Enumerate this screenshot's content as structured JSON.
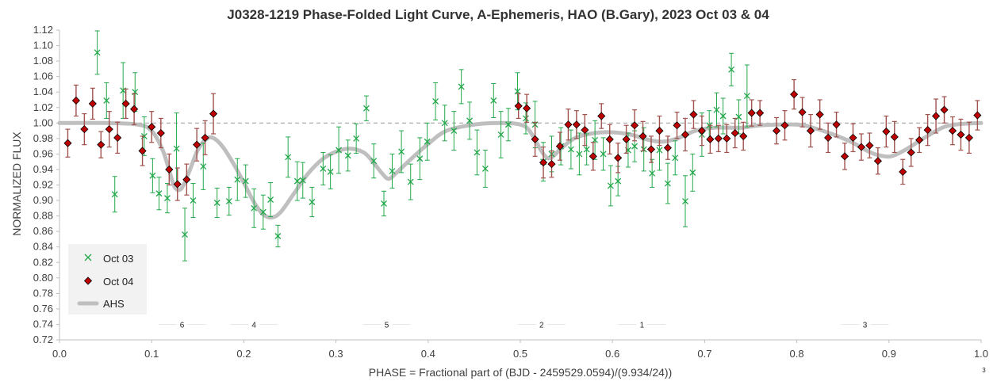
{
  "chart_data": {
    "type": "scatter",
    "title": "J0328-1219 Phase-Folded Light Curve, A-Ephemeris, HAO (B.Gary), 2023 Oct 03 & 04",
    "xlabel": "PHASE = Fractional part of (BJD - 2459529.0594)/(9.934/24))",
    "ylabel": "NORMALIZED FLUX",
    "xlim": [
      0,
      1
    ],
    "ylim": [
      0.72,
      1.12
    ],
    "x_ticks": [
      "0.0",
      "0.1",
      "0.2",
      "0.3",
      "0.4",
      "0.5",
      "0.6",
      "0.7",
      "0.8",
      "0.9",
      "1.0"
    ],
    "y_ticks": [
      "0.72",
      "0.74",
      "0.76",
      "0.78",
      "0.80",
      "0.82",
      "0.84",
      "0.86",
      "0.88",
      "0.90",
      "0.92",
      "0.94",
      "0.96",
      "0.98",
      "1.00",
      "1.02",
      "1.04",
      "1.06",
      "1.08",
      "1.10",
      "1.12"
    ],
    "grid": false,
    "reference_line": 1.0,
    "legend_position": "bottom-left",
    "segment_labels": [
      {
        "label": "6",
        "x": 0.133
      },
      {
        "label": "4",
        "x": 0.211
      },
      {
        "label": "5",
        "x": 0.355
      },
      {
        "label": "2",
        "x": 0.523
      },
      {
        "label": "1",
        "x": 0.632
      },
      {
        "label": "3",
        "x": 0.874
      },
      {
        "label": "3",
        "x": 1.003
      }
    ],
    "series": [
      {
        "name": "Oct 03",
        "marker": "x",
        "color": "#22A84A",
        "points": [
          [
            0.041,
            1.091,
            0.028
          ],
          [
            0.051,
            1.029,
            0.023
          ],
          [
            0.06,
            0.908,
            0.023
          ],
          [
            0.069,
            1.042,
            0.036
          ],
          [
            0.082,
            1.04,
            0.025
          ],
          [
            0.092,
            0.983,
            0.025
          ],
          [
            0.101,
            0.932,
            0.022
          ],
          [
            0.108,
            0.909,
            0.021
          ],
          [
            0.117,
            0.903,
            0.019
          ],
          [
            0.127,
            0.967,
            0.046
          ],
          [
            0.136,
            0.856,
            0.034
          ],
          [
            0.145,
            0.9,
            0.022
          ],
          [
            0.156,
            0.944,
            0.03
          ],
          [
            0.171,
            0.897,
            0.019
          ],
          [
            0.184,
            0.899,
            0.018
          ],
          [
            0.193,
            0.927,
            0.027
          ],
          [
            0.202,
            0.925,
            0.021
          ],
          [
            0.211,
            0.89,
            0.025
          ],
          [
            0.221,
            0.885,
            0.022
          ],
          [
            0.229,
            0.901,
            0.022
          ],
          [
            0.237,
            0.854,
            0.014
          ],
          [
            0.248,
            0.956,
            0.026
          ],
          [
            0.258,
            0.925,
            0.025
          ],
          [
            0.264,
            0.926,
            0.023
          ],
          [
            0.274,
            0.898,
            0.019
          ],
          [
            0.286,
            0.941,
            0.021
          ],
          [
            0.294,
            0.937,
            0.022
          ],
          [
            0.303,
            0.965,
            0.03
          ],
          [
            0.313,
            0.958,
            0.02
          ],
          [
            0.322,
            0.98,
            0.019
          ],
          [
            0.333,
            1.019,
            0.016
          ],
          [
            0.341,
            0.951,
            0.022
          ],
          [
            0.352,
            0.896,
            0.016
          ],
          [
            0.361,
            0.938,
            0.022
          ],
          [
            0.371,
            0.963,
            0.027
          ],
          [
            0.381,
            0.924,
            0.023
          ],
          [
            0.391,
            0.954,
            0.027
          ],
          [
            0.399,
            0.976,
            0.024
          ],
          [
            0.408,
            1.028,
            0.024
          ],
          [
            0.418,
            1.0,
            0.023
          ],
          [
            0.428,
            0.99,
            0.025
          ],
          [
            0.436,
            1.047,
            0.022
          ],
          [
            0.445,
            1.003,
            0.024
          ],
          [
            0.453,
            0.962,
            0.029
          ],
          [
            0.462,
            0.941,
            0.024
          ],
          [
            0.471,
            1.029,
            0.022
          ],
          [
            0.479,
            0.985,
            0.03
          ],
          [
            0.487,
            0.998,
            0.021
          ],
          [
            0.497,
            1.041,
            0.024
          ],
          [
            0.506,
            1.006,
            0.02
          ],
          [
            0.516,
            0.998,
            0.03
          ],
          [
            0.525,
            0.95,
            0.025
          ],
          [
            0.534,
            0.96,
            0.023
          ],
          [
            0.544,
            0.97,
            0.024
          ],
          [
            0.555,
            0.966,
            0.025
          ],
          [
            0.564,
            0.96,
            0.027
          ],
          [
            0.572,
            0.966,
            0.02
          ],
          [
            0.581,
            0.978,
            0.025
          ],
          [
            0.59,
            0.96,
            0.021
          ],
          [
            0.598,
            0.919,
            0.026
          ],
          [
            0.606,
            0.925,
            0.019
          ],
          [
            0.617,
            0.965,
            0.022
          ],
          [
            0.624,
            0.97,
            0.02
          ],
          [
            0.634,
            0.966,
            0.028
          ],
          [
            0.643,
            0.935,
            0.018
          ],
          [
            0.651,
            0.965,
            0.026
          ],
          [
            0.66,
            0.922,
            0.026
          ],
          [
            0.668,
            0.955,
            0.022
          ],
          [
            0.679,
            0.899,
            0.033
          ],
          [
            0.687,
            0.936,
            0.024
          ],
          [
            0.697,
            0.985,
            0.028
          ],
          [
            0.705,
            0.997,
            0.019
          ],
          [
            0.713,
            1.017,
            0.022
          ],
          [
            0.72,
            1.009,
            0.023
          ],
          [
            0.729,
            1.069,
            0.021
          ],
          [
            0.737,
            1.008,
            0.022
          ],
          [
            0.746,
            1.035,
            0.04
          ]
        ]
      },
      {
        "name": "Oct 04",
        "marker": "diamond",
        "color": "#C00000",
        "points": [
          [
            0.009,
            0.974,
            0.018
          ],
          [
            0.018,
            1.029,
            0.02
          ],
          [
            0.027,
            0.992,
            0.02
          ],
          [
            0.036,
            1.025,
            0.02
          ],
          [
            0.045,
            0.972,
            0.017
          ],
          [
            0.054,
            0.992,
            0.023
          ],
          [
            0.063,
            0.981,
            0.02
          ],
          [
            0.072,
            1.025,
            0.019
          ],
          [
            0.081,
            1.018,
            0.02
          ],
          [
            0.09,
            0.964,
            0.019
          ],
          [
            0.1,
            0.995,
            0.02
          ],
          [
            0.11,
            0.987,
            0.019
          ],
          [
            0.119,
            0.94,
            0.02
          ],
          [
            0.128,
            0.921,
            0.021
          ],
          [
            0.138,
            0.927,
            0.02
          ],
          [
            0.149,
            0.972,
            0.021
          ],
          [
            0.158,
            0.981,
            0.022
          ],
          [
            0.167,
            1.012,
            0.026
          ],
          [
            0.498,
            1.022,
            0.016
          ],
          [
            0.507,
            1.019,
            0.018
          ],
          [
            0.516,
            0.979,
            0.022
          ],
          [
            0.525,
            0.949,
            0.02
          ],
          [
            0.534,
            0.947,
            0.017
          ],
          [
            0.543,
            0.97,
            0.018
          ],
          [
            0.552,
            0.998,
            0.02
          ],
          [
            0.561,
            0.998,
            0.018
          ],
          [
            0.57,
            0.991,
            0.02
          ],
          [
            0.579,
            0.957,
            0.018
          ],
          [
            0.588,
            1.009,
            0.016
          ],
          [
            0.597,
            0.979,
            0.019
          ],
          [
            0.606,
            0.955,
            0.019
          ],
          [
            0.615,
            0.979,
            0.018
          ],
          [
            0.624,
            0.997,
            0.02
          ],
          [
            0.633,
            0.983,
            0.019
          ],
          [
            0.642,
            0.966,
            0.017
          ],
          [
            0.651,
            0.99,
            0.019
          ],
          [
            0.66,
            0.968,
            0.015
          ],
          [
            0.67,
            0.997,
            0.017
          ],
          [
            0.679,
            0.985,
            0.021
          ],
          [
            0.688,
            1.011,
            0.018
          ],
          [
            0.697,
            0.99,
            0.019
          ],
          [
            0.706,
            0.979,
            0.018
          ],
          [
            0.715,
            0.98,
            0.017
          ],
          [
            0.724,
            0.98,
            0.018
          ],
          [
            0.733,
            0.987,
            0.019
          ],
          [
            0.742,
            0.983,
            0.018
          ],
          [
            0.751,
            1.013,
            0.017
          ],
          [
            0.76,
            1.013,
            0.016
          ],
          [
            0.778,
            0.99,
            0.017
          ],
          [
            0.787,
            0.997,
            0.019
          ],
          [
            0.797,
            1.037,
            0.019
          ],
          [
            0.806,
            1.014,
            0.019
          ],
          [
            0.815,
            0.99,
            0.021
          ],
          [
            0.825,
            1.011,
            0.019
          ],
          [
            0.834,
            0.981,
            0.019
          ],
          [
            0.843,
            0.998,
            0.016
          ],
          [
            0.852,
            0.957,
            0.017
          ],
          [
            0.861,
            0.981,
            0.018
          ],
          [
            0.87,
            0.969,
            0.017
          ],
          [
            0.879,
            0.971,
            0.016
          ],
          [
            0.888,
            0.951,
            0.017
          ],
          [
            0.897,
            0.989,
            0.02
          ],
          [
            0.906,
            0.982,
            0.02
          ],
          [
            0.915,
            0.937,
            0.016
          ],
          [
            0.924,
            0.962,
            0.018
          ],
          [
            0.933,
            0.978,
            0.016
          ],
          [
            0.942,
            0.991,
            0.02
          ],
          [
            0.951,
            1.009,
            0.022
          ],
          [
            0.96,
            1.017,
            0.017
          ],
          [
            0.969,
            0.99,
            0.018
          ],
          [
            0.978,
            0.985,
            0.02
          ],
          [
            0.987,
            0.981,
            0.02
          ],
          [
            0.996,
            1.01,
            0.019
          ]
        ]
      },
      {
        "name": "AHS",
        "marker": "line",
        "color": "#BFBFBF",
        "points": [
          [
            0.0,
            1.0
          ],
          [
            0.05,
            1.0
          ],
          [
            0.085,
            0.998
          ],
          [
            0.1,
            0.99
          ],
          [
            0.112,
            0.965
          ],
          [
            0.12,
            0.935
          ],
          [
            0.125,
            0.917
          ],
          [
            0.132,
            0.915
          ],
          [
            0.14,
            0.935
          ],
          [
            0.15,
            0.965
          ],
          [
            0.16,
            0.98
          ],
          [
            0.168,
            0.98
          ],
          [
            0.178,
            0.968
          ],
          [
            0.19,
            0.945
          ],
          [
            0.2,
            0.923
          ],
          [
            0.21,
            0.9
          ],
          [
            0.22,
            0.883
          ],
          [
            0.23,
            0.878
          ],
          [
            0.24,
            0.885
          ],
          [
            0.255,
            0.91
          ],
          [
            0.27,
            0.935
          ],
          [
            0.285,
            0.953
          ],
          [
            0.3,
            0.963
          ],
          [
            0.315,
            0.967
          ],
          [
            0.33,
            0.962
          ],
          [
            0.34,
            0.95
          ],
          [
            0.35,
            0.935
          ],
          [
            0.357,
            0.928
          ],
          [
            0.365,
            0.935
          ],
          [
            0.38,
            0.952
          ],
          [
            0.4,
            0.973
          ],
          [
            0.42,
            0.99
          ],
          [
            0.45,
            0.998
          ],
          [
            0.48,
            1.0
          ],
          [
            0.5,
            0.998
          ],
          [
            0.51,
            0.99
          ],
          [
            0.525,
            0.96
          ],
          [
            0.533,
            0.955
          ],
          [
            0.545,
            0.968
          ],
          [
            0.56,
            0.981
          ],
          [
            0.58,
            0.987
          ],
          [
            0.6,
            0.988
          ],
          [
            0.62,
            0.985
          ],
          [
            0.64,
            0.978
          ],
          [
            0.655,
            0.976
          ],
          [
            0.67,
            0.98
          ],
          [
            0.69,
            0.99
          ],
          [
            0.71,
            0.994
          ],
          [
            0.74,
            0.994
          ],
          [
            0.76,
            0.997
          ],
          [
            0.8,
            0.998
          ],
          [
            0.82,
            0.993
          ],
          [
            0.84,
            0.985
          ],
          [
            0.86,
            0.975
          ],
          [
            0.88,
            0.962
          ],
          [
            0.895,
            0.957
          ],
          [
            0.905,
            0.958
          ],
          [
            0.92,
            0.967
          ],
          [
            0.94,
            0.982
          ],
          [
            0.96,
            0.995
          ],
          [
            0.98,
            0.999
          ],
          [
            1.0,
            1.0
          ]
        ]
      }
    ]
  }
}
